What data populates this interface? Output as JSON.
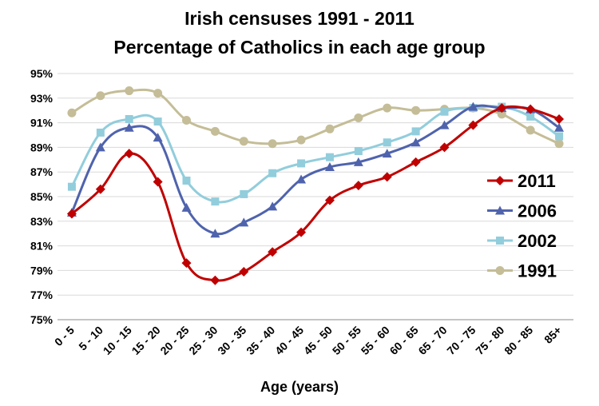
{
  "chart_data": {
    "type": "line",
    "title": "Irish censuses 1991 - 2011",
    "subtitle": "Percentage of Catholics in each age group",
    "xlabel": "Age (years)",
    "ylabel": "",
    "ylim": [
      75,
      95
    ],
    "ytick_step": 2,
    "ytick_suffix": "%",
    "ytick_labels": [
      "75%",
      "77%",
      "79%",
      "81%",
      "83%",
      "85%",
      "87%",
      "89%",
      "91%",
      "93%",
      "95%"
    ],
    "grid": true,
    "legend_position": "right",
    "categories": [
      "0 - 5",
      "5 - 10",
      "10 - 15",
      "15 - 20",
      "20 - 25",
      "25 - 30",
      "30 - 35",
      "35 - 40",
      "40 - 45",
      "45 - 50",
      "50 - 55",
      "55 - 60",
      "60 - 65",
      "65 - 70",
      "70 - 75",
      "75 - 80",
      "80 - 85",
      "85+"
    ],
    "series": [
      {
        "name": "2011",
        "color": "#c00000",
        "marker": "diamond",
        "values": [
          83.6,
          85.6,
          88.5,
          86.2,
          79.6,
          78.2,
          78.9,
          80.5,
          82.1,
          84.7,
          85.9,
          86.6,
          87.8,
          89.0,
          90.8,
          92.2,
          92.1,
          91.3
        ]
      },
      {
        "name": "2006",
        "color": "#4f63ad",
        "marker": "triangle",
        "values": [
          83.7,
          89.0,
          90.6,
          89.8,
          84.1,
          82.0,
          82.9,
          84.2,
          86.4,
          87.4,
          87.8,
          88.5,
          89.4,
          90.8,
          92.3,
          92.2,
          92.1,
          90.6
        ]
      },
      {
        "name": "2002",
        "color": "#92cddc",
        "marker": "square",
        "values": [
          85.8,
          90.2,
          91.3,
          91.1,
          86.3,
          84.6,
          85.2,
          86.9,
          87.7,
          88.2,
          88.7,
          89.4,
          90.3,
          91.9,
          92.2,
          92.3,
          91.5,
          89.9
        ]
      },
      {
        "name": "1991",
        "color": "#c4bd97",
        "marker": "circle",
        "values": [
          91.8,
          93.2,
          93.6,
          93.4,
          91.2,
          90.3,
          89.5,
          89.3,
          89.6,
          90.5,
          91.4,
          92.2,
          92.0,
          92.1,
          92.2,
          91.7,
          90.4,
          89.3
        ]
      }
    ]
  }
}
